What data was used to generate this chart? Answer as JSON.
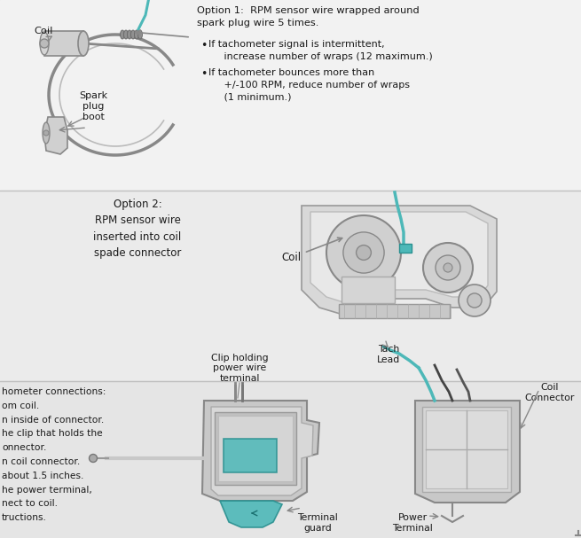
{
  "bg_top": "#f0f0f0",
  "bg_mid": "#e8e8e8",
  "bg_bot": "#e0e0e0",
  "text_color": "#1a1a1a",
  "arrow_color": "#777777",
  "teal_color": "#4db8b8",
  "gray_line": "#b0b0b0",
  "divider": "#c0c0c0",
  "s1_title": "Option 1:  RPM sensor wire wrapped around\nspark plug wire 5 times.",
  "s1_b1": "If tachometer signal is intermittent,\n     increase number of wraps (12 maximum.)",
  "s1_b2": "If tachometer bounces more than\n     +/-100 RPM, reduce number of wraps\n     (1 minimum.)",
  "s1_coil": "Coil",
  "s1_spark": "Spark\nplug\nboot",
  "s2_title": "Option 2:\nRPM sensor wire\ninserted into coil\nspade connector",
  "s2_coil": "Coil",
  "s3_left": [
    "hometer connections:",
    "om coil.",
    "n inside of connector.",
    "he clip that holds the",
    "onnector.",
    "n coil connector.",
    "about 1.5 inches.",
    "he power terminal,",
    "nect to coil.",
    "tructions."
  ],
  "s3_clip": "Clip holding\npower wire\nterminal",
  "s3_tach": "Tach\nLead",
  "s3_coilconn": "Coil\nConnector",
  "s3_terminal": "Terminal\nguard",
  "s3_power": "Power\nTerminal",
  "fig_w": 6.55,
  "fig_h": 6.07,
  "dpi": 100
}
